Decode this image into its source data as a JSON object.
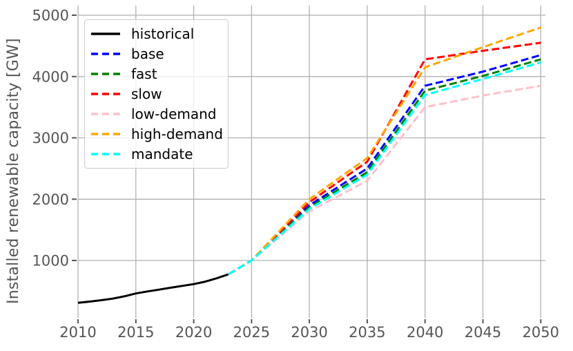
{
  "chart_data": {
    "type": "line",
    "title": "",
    "xlabel": "",
    "ylabel": "Installed renewable capacity [GW]",
    "x_ticks": [
      2010,
      2015,
      2020,
      2025,
      2030,
      2035,
      2040,
      2045,
      2050
    ],
    "y_ticks": [
      1000,
      2000,
      3000,
      4000,
      5000
    ],
    "xlim": [
      2010,
      2050.4
    ],
    "ylim": [
      65,
      5160
    ],
    "grid": true,
    "grid_color": "#b0b0b0",
    "axis_color": "#555555",
    "legend_position": "upper-left",
    "legend_text_color": "#000000",
    "series": [
      {
        "name": "historical",
        "color": "#000000",
        "style": "solid",
        "x": [
          2010,
          2011,
          2012,
          2013,
          2014,
          2015,
          2016,
          2017,
          2018,
          2019,
          2020,
          2021,
          2022,
          2023
        ],
        "y": [
          310,
          330,
          352,
          378,
          415,
          462,
          495,
          525,
          556,
          585,
          615,
          655,
          710,
          775
        ]
      },
      {
        "name": "base",
        "color": "#0000ff",
        "style": "dashed",
        "x": [
          2023,
          2025,
          2030,
          2035,
          2040,
          2045,
          2050
        ],
        "y": [
          775,
          1000,
          1900,
          2500,
          3850,
          4080,
          4350
        ]
      },
      {
        "name": "fast",
        "color": "#008000",
        "style": "dashed",
        "x": [
          2023,
          2025,
          2030,
          2035,
          2040,
          2045,
          2050
        ],
        "y": [
          775,
          1000,
          1870,
          2440,
          3770,
          4010,
          4280
        ]
      },
      {
        "name": "slow",
        "color": "#ff0000",
        "style": "dashed",
        "x": [
          2023,
          2025,
          2030,
          2035,
          2040,
          2045,
          2050
        ],
        "y": [
          775,
          1000,
          1950,
          2610,
          4280,
          4420,
          4550
        ]
      },
      {
        "name": "low-demand",
        "color": "#ffc0cb",
        "style": "dashed",
        "x": [
          2023,
          2025,
          2030,
          2035,
          2040,
          2045,
          2050
        ],
        "y": [
          775,
          1000,
          1800,
          2300,
          3500,
          3690,
          3850
        ]
      },
      {
        "name": "high-demand",
        "color": "#ffa500",
        "style": "dashed",
        "x": [
          2023,
          2025,
          2030,
          2035,
          2040,
          2045,
          2050
        ],
        "y": [
          775,
          1000,
          2000,
          2670,
          4150,
          4480,
          4800
        ]
      },
      {
        "name": "mandate",
        "color": "#00ffff",
        "style": "dashed",
        "x": [
          2023,
          2025,
          2030,
          2035,
          2040,
          2045,
          2050
        ],
        "y": [
          775,
          1000,
          1840,
          2400,
          3700,
          3960,
          4230
        ]
      }
    ]
  }
}
